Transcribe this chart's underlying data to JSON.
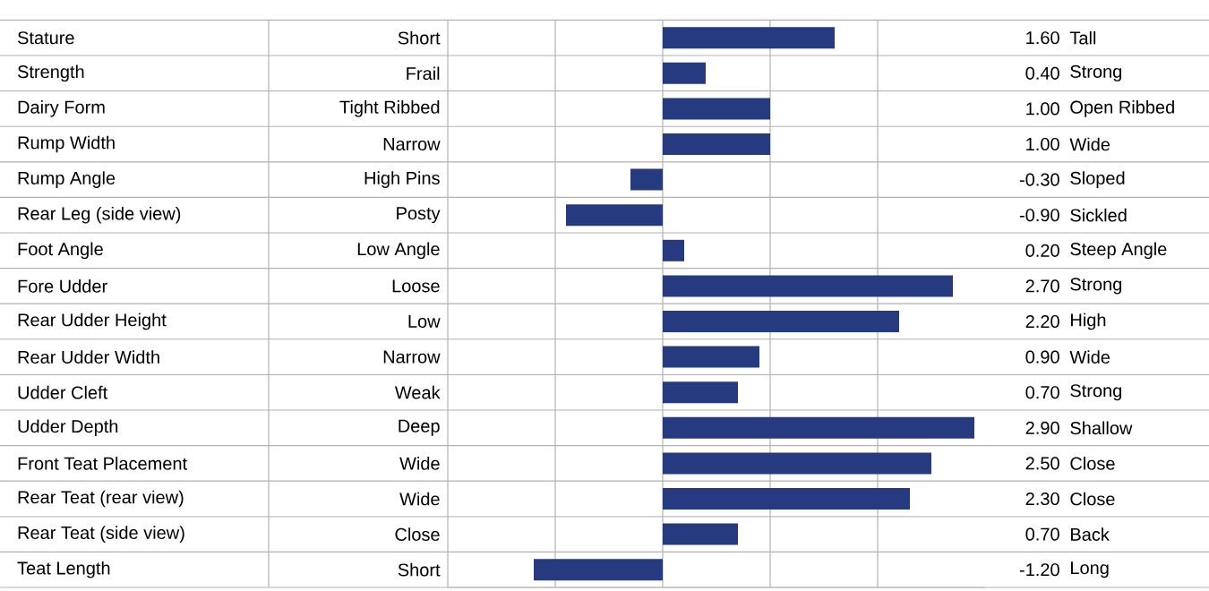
{
  "chart_data": {
    "type": "bar",
    "orientation": "horizontal",
    "categories": [
      "Stature",
      "Strength",
      "Dairy Form",
      "Rump Width",
      "Rump Angle",
      "Rear Leg (side view)",
      "Foot Angle",
      "Fore Udder",
      "Rear Udder Height",
      "Rear Udder Width",
      "Udder Cleft",
      "Udder Depth",
      "Front Teat Placement",
      "Rear Teat (rear view)",
      "Rear Teat (side view)",
      "Teat Length"
    ],
    "values": [
      1.6,
      0.4,
      1.0,
      1.0,
      -0.3,
      -0.9,
      0.2,
      2.7,
      2.2,
      0.9,
      0.7,
      2.9,
      2.5,
      2.3,
      0.7,
      -1.2
    ],
    "value_labels": [
      "1.60",
      "0.40",
      "1.00",
      "1.00",
      "-0.30",
      "-0.90",
      "0.20",
      "2.70",
      "2.20",
      "0.90",
      "0.70",
      "2.90",
      "2.50",
      "2.30",
      "0.70",
      "-1.20"
    ],
    "color": "#263a80",
    "xlim": [
      -2,
      3
    ],
    "xticks": [
      {
        "value": -2,
        "label": null
      },
      {
        "value": -1,
        "label": null
      },
      {
        "value": 0,
        "label": null
      },
      {
        "value": 1,
        "label": null
      },
      {
        "value": 2,
        "label": null
      }
    ],
    "grid": "x",
    "tick_labels": "y",
    "annotations": [
      "Short",
      "Tall",
      "Frail",
      "Strong",
      "Tight Ribbed",
      "Open Ribbed",
      "Narrow",
      "Wide",
      "High Pins",
      "Sloped",
      "Posty",
      "Sickled",
      "Low Angle",
      "Steep Angle",
      "Loose",
      "Strong",
      "Low",
      "High",
      "Narrow",
      "Wide",
      "Weak",
      "Strong",
      "Deep",
      "Shallow",
      "Wide",
      "Close",
      "Wide",
      "Close",
      "Close",
      "Back",
      "Short",
      "Long"
    ]
  }
}
